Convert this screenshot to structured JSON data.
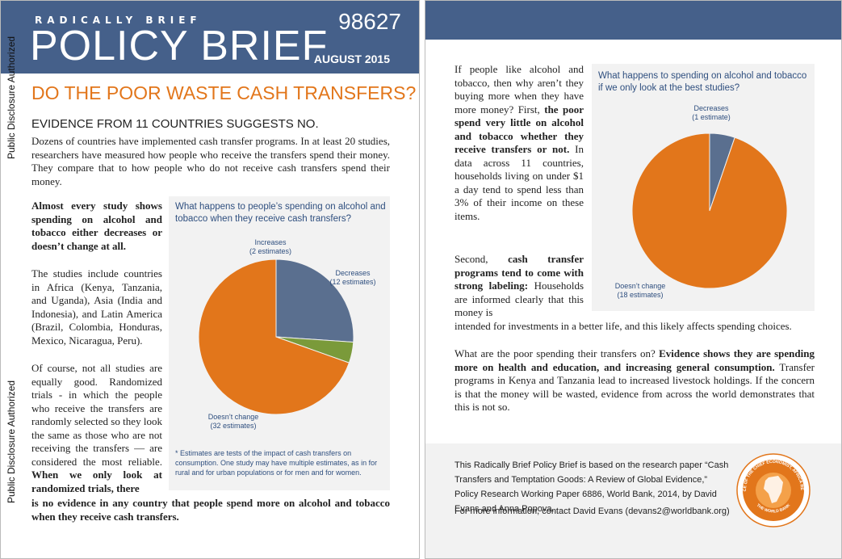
{
  "page1": {
    "kicker": "RADICALLY BRIEF",
    "title": "POLICY BRIEF",
    "doc_number": "98627",
    "date": "AUGUST 2015",
    "disclosure": "Public Disclosure Authorized",
    "headline": "DO THE POOR WASTE CASH TRANSFERS?",
    "subheadline": "EVIDENCE FROM 11 COUNTRIES SUGGESTS NO.",
    "intro": "Dozens of countries have implemented cash transfer programs. In at least 20 studies, researchers have measured how people who receive the transfers spend their money. They compare that to how people who do not receive cash transfers spend their money.",
    "key_finding": "Almost every study shows spending on alcohol and tobacco either decreases or doesn’t change at all.",
    "countries": "The studies include countries in Africa (Kenya, Tanzania, and Uganda), Asia (India and Indonesia), and Latin America (Brazil, Colombia, Honduras, Mexico, Nicaragua, Peru).",
    "rct_text": "Of course, not all studies are equally good. Randomized trials - in which the people who receive the transfers are randomly selected so they look the same as those who are not receiving the transfers — are considered the most reliable.",
    "rct_bold_a": "When we only look at randomized trials, there",
    "rct_bold_b": "is no evidence in any country that people spend more on alcohol and tobacco when they receive cash transfers.",
    "chart_title": "What happens to people’s spending on alcohol and tobacco when they receive cash transfers?",
    "chart_note": "* Estimates are tests of the impact of cash transfers on consumption. One study may have multiple estimates, as in for rural and for urban populations or for men and for women."
  },
  "page2": {
    "p1_a": "If people like alcohol and tobacco, then why aren’t they buying more when they have more money? First,",
    "p1_bold": "the poor spend very little on alcohol and tobacco whether they receive transfers or not.",
    "p1_b": "In data across 11 countries, households living on under $1 a day tend to spend less than 3% of their income on these items.",
    "p2_a": "Second,",
    "p2_bold": "cash transfer programs tend to come with strong labeling:",
    "p2_b": "Households are informed clearly that this money is",
    "p2_c": "intended for investments in a better life, and this likely affects spending choices.",
    "p3_a": "What are the poor spending their transfers on?",
    "p3_bold": "Evidence shows they are spending more on health and education, and increasing general consumption.",
    "p3_b": "Transfer programs in Kenya and Tanzania lead to increased livestock holdings. If the concern is that the money will be wasted, evidence from across the world demonstrates that this is not so.",
    "chart_title": "What happens to spending on alcohol and tobacco if we only look at the best studies?",
    "footer_text": "This Radically Brief Policy Brief is based on the research paper “Cash Transfers and Temptation Goods: A Review of Global Evidence,” Policy Research Working Paper 6886, World Bank, 2014, by David Evans and Anna Popova.",
    "footer_contact": "For more information, contact David Evans (devans2@worldbank.org)",
    "seal_text": "OFFICE OF THE CHIEF ECONOMIST, AFRICA REGION",
    "seal_bottom": "THE WORLD BANK"
  },
  "colors": {
    "banner": "#45608a",
    "orange": "#e2761b",
    "slate": "#5a6f8f",
    "green": "#7a9a3a"
  },
  "chart_data": [
    {
      "type": "pie",
      "title": "What happens to people’s spending on alcohol and tobacco when they receive cash transfers?",
      "labels": [
        "Decreases",
        "Increases",
        "Doesn’t change"
      ],
      "sublabels": [
        "(12 estimates)",
        "(2 estimates)",
        "(32 estimates)"
      ],
      "values": [
        12,
        2,
        32
      ],
      "colors": [
        "#5a6f8f",
        "#7a9a3a",
        "#e2761b"
      ]
    },
    {
      "type": "pie",
      "title": "What happens to spending on alcohol and tobacco if we only look at the best studies?",
      "labels": [
        "Decreases",
        "Doesn’t change"
      ],
      "sublabels": [
        "(1 estimate)",
        "(18 estimates)"
      ],
      "values": [
        1,
        18
      ],
      "colors": [
        "#5a6f8f",
        "#e2761b"
      ]
    }
  ]
}
